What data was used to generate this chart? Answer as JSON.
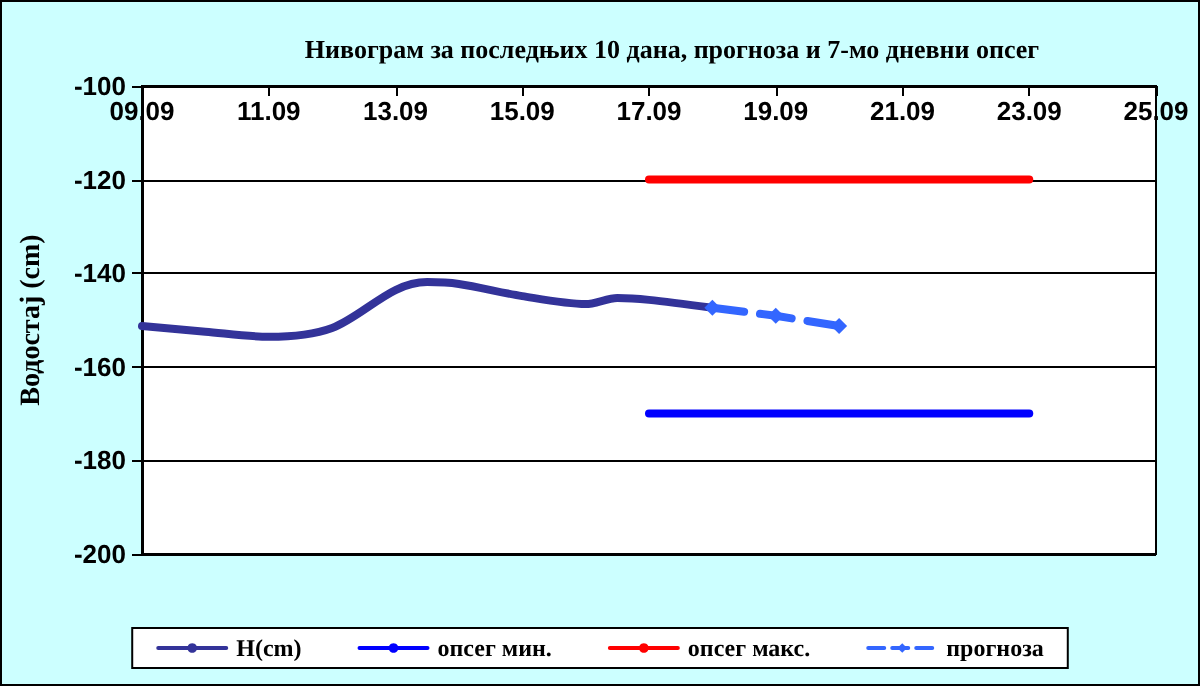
{
  "chart_data": {
    "type": "line",
    "title": "Нивограм за последњих 10 дана, прогноза и 7-мо дневни опсег",
    "ylabel": "Водостај (cm)",
    "xlim": [
      "--09-09",
      "--09-25"
    ],
    "xticks": [
      {
        "value": "--09-09",
        "label": "09.09"
      },
      {
        "value": "--09-11",
        "label": "11.09"
      },
      {
        "value": "--09-13",
        "label": "13.09"
      },
      {
        "value": "--09-15",
        "label": "15.09"
      },
      {
        "value": "--09-17",
        "label": "17.09"
      },
      {
        "value": "--09-19",
        "label": "19.09"
      },
      {
        "value": "--09-21",
        "label": "21.09"
      },
      {
        "value": "--09-23",
        "label": "23.09"
      },
      {
        "value": "--09-25",
        "label": "25.09"
      }
    ],
    "ylim": [
      -200,
      -100
    ],
    "yticks": [
      -100,
      -120,
      -140,
      -160,
      -180,
      -200
    ],
    "grid": "y",
    "legend": "bottom",
    "series": [
      {
        "name": "H(cm)",
        "color": "#333399",
        "marker": "none",
        "line_style": "solid",
        "x": [
          "--09-09",
          "--09-10",
          "--09-11",
          "--09-12",
          "--09-13",
          "--09-13T12:00",
          "--09-14",
          "--09-15",
          "--09-16",
          "--09-16T12:00",
          "--09-17",
          "--09-18"
        ],
        "values": [
          -151.3,
          -152.5,
          -153.6,
          -151.7,
          -143.6,
          -141.9,
          -142.3,
          -144.9,
          -146.6,
          -145.3,
          -145.7,
          -147.4
        ]
      },
      {
        "name": "опсег мин.",
        "color": "#0000ff",
        "marker": "none",
        "line_style": "solid",
        "x": [
          "--09-17",
          "--09-23"
        ],
        "values": [
          -170,
          -170
        ]
      },
      {
        "name": "опсег макс.",
        "color": "#ff0000",
        "marker": "none",
        "line_style": "solid",
        "x": [
          "--09-17",
          "--09-23"
        ],
        "values": [
          -120,
          -120
        ]
      },
      {
        "name": "прогноза",
        "color": "#3366ff",
        "marker": "diamond",
        "line_style": "dashed",
        "x": [
          "--09-18",
          "--09-19",
          "--09-20"
        ],
        "values": [
          -147.4,
          -149.1,
          -151.3
        ]
      }
    ]
  }
}
